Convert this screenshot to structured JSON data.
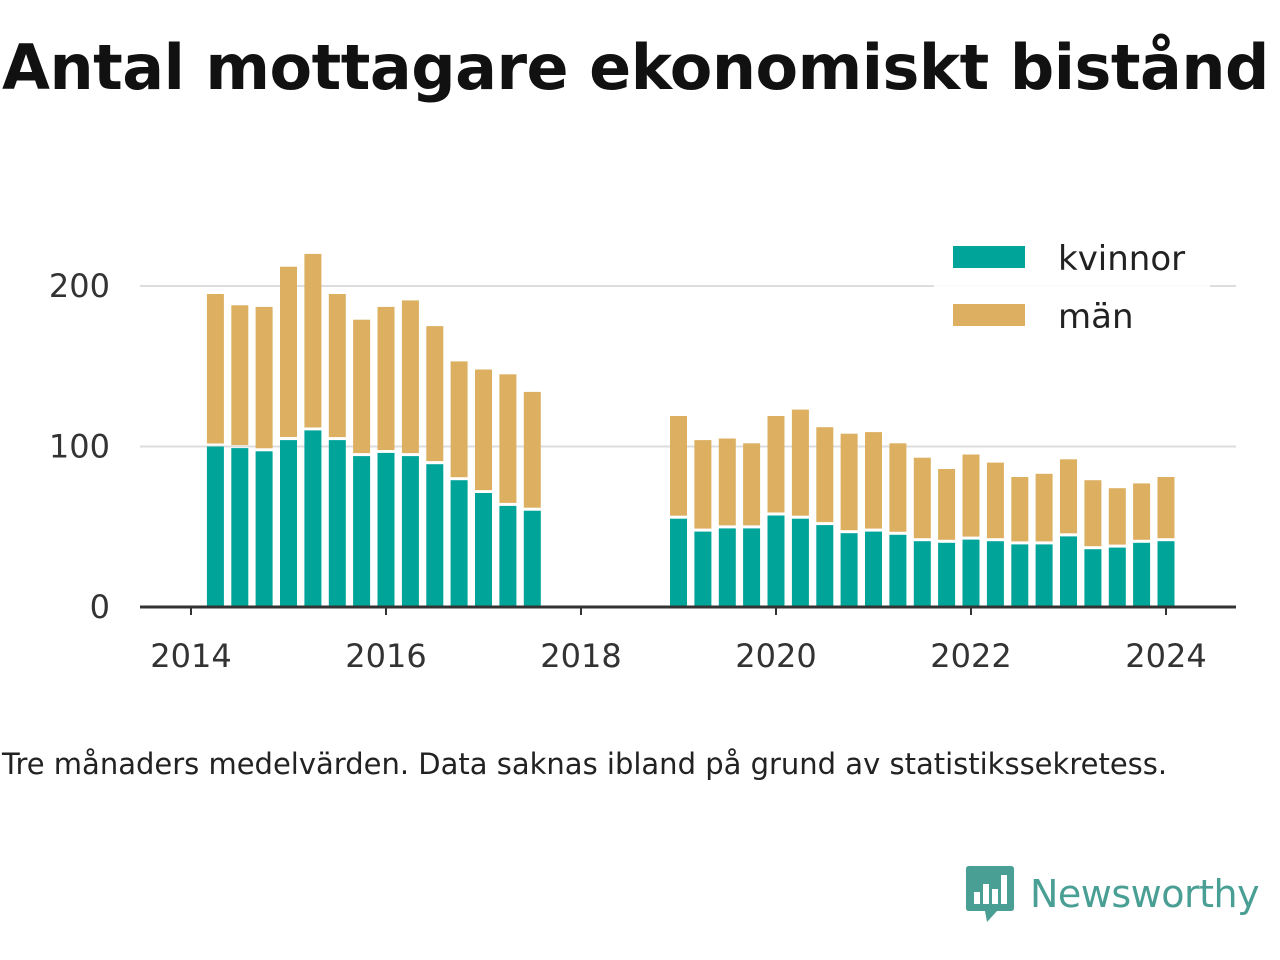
{
  "title": "Antal mottagare ekonomiskt bistånd",
  "caption": "Tre månaders medelvärden. Data saknas ibland på grund av statistikssekretess.",
  "brand": {
    "name": "Newsworthy"
  },
  "colors": {
    "kvinnor": "#00a499",
    "man": "#dcb060",
    "gridline": "#dddddd",
    "axis": "#333333",
    "tick_text": "#333333",
    "brand": "#4a9f95"
  },
  "chart_data": {
    "type": "bar",
    "stacked": true,
    "title": "Antal mottagare ekonomiskt bistånd",
    "xlabel": "",
    "ylabel": "",
    "ylim": [
      0,
      220
    ],
    "yticks": [
      0,
      100,
      200
    ],
    "xlim": [
      2013.5,
      2024.7
    ],
    "xticks": [
      2014,
      2016,
      2018,
      2020,
      2022,
      2024
    ],
    "grid": true,
    "legend_position": "top-right",
    "x": [
      2014.25,
      2014.5,
      2014.75,
      2015.0,
      2015.25,
      2015.5,
      2015.75,
      2016.0,
      2016.25,
      2016.5,
      2016.75,
      2017.0,
      2017.25,
      2017.5,
      2019.0,
      2019.25,
      2019.5,
      2019.75,
      2020.0,
      2020.25,
      2020.5,
      2020.75,
      2021.0,
      2021.25,
      2021.5,
      2021.75,
      2022.0,
      2022.25,
      2022.5,
      2022.75,
      2023.0,
      2023.25,
      2023.5,
      2023.75,
      2024.0
    ],
    "series": [
      {
        "name": "kvinnor",
        "values": [
          100,
          99,
          97,
          104,
          110,
          104,
          94,
          96,
          94,
          89,
          79,
          71,
          63,
          60,
          55,
          47,
          49,
          49,
          57,
          55,
          51,
          46,
          47,
          45,
          41,
          40,
          42,
          41,
          39,
          39,
          44,
          36,
          37,
          40,
          41
        ]
      },
      {
        "name": "män",
        "values": [
          95,
          89,
          90,
          108,
          110,
          91,
          85,
          91,
          97,
          86,
          74,
          77,
          82,
          74,
          64,
          57,
          56,
          53,
          62,
          68,
          61,
          62,
          62,
          57,
          52,
          46,
          53,
          49,
          42,
          44,
          48,
          43,
          37,
          37,
          40
        ]
      }
    ]
  }
}
